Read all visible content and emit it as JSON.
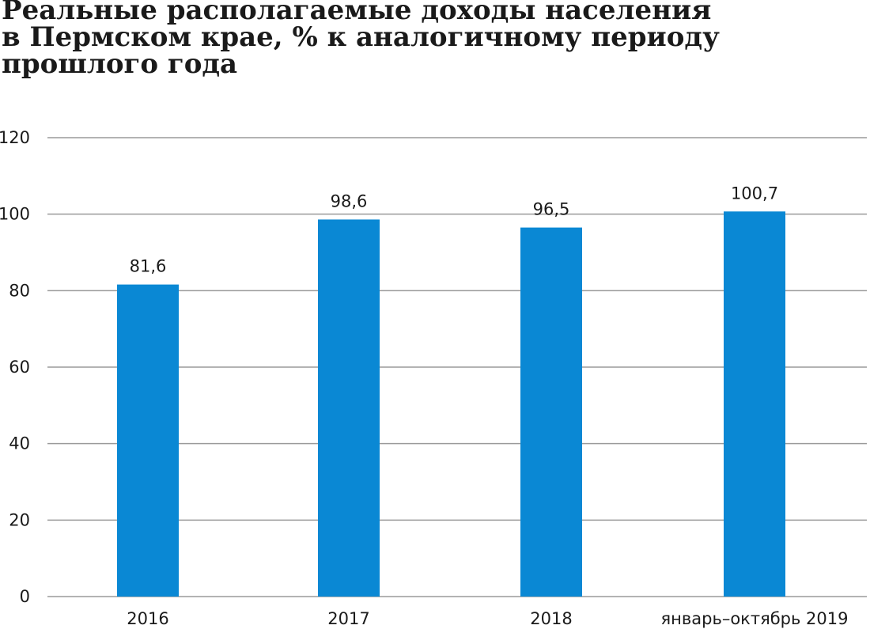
{
  "chart_data": {
    "type": "bar",
    "title_lines": [
      "Реальные располагаемые доходы населения",
      "в Пермском крае, % к аналогичному периоду",
      "прошлого года"
    ],
    "categories": [
      "2016",
      "2017",
      "2018",
      "январь–октябрь 2019"
    ],
    "values": [
      81.6,
      98.6,
      96.5,
      100.7
    ],
    "value_labels": [
      "81,6",
      "98,6",
      "96,5",
      "100,7"
    ],
    "y_ticks": [
      "0",
      "20",
      "40",
      "60",
      "80",
      "100",
      "120"
    ],
    "ylim": [
      0,
      120
    ],
    "grid": true,
    "legend": "none",
    "colors": {
      "bar": "#0a88d4",
      "grid": "#9a9a9a",
      "text": "#1a1a1a"
    }
  }
}
